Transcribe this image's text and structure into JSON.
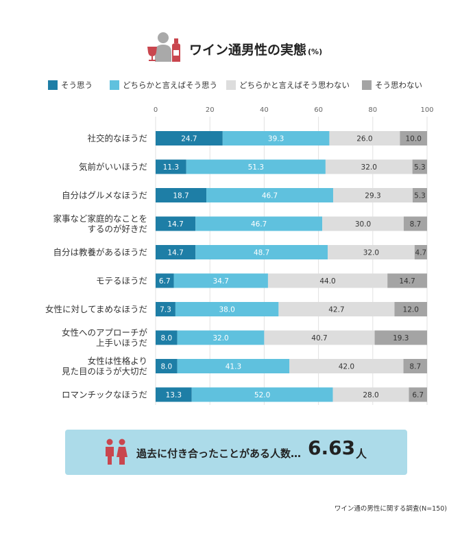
{
  "header": {
    "title": "ワイン通男性の実態",
    "unit": "(%)",
    "icon": "person-wine-icon"
  },
  "colors": {
    "agree": "#1e7ea6",
    "somewhat_agree": "#5fc1de",
    "somewhat_disagree": "#dddddd",
    "disagree": "#a4a4a4",
    "accent_red": "#c9464e",
    "callout_bg": "#acdbe9"
  },
  "chart_data": {
    "type": "bar",
    "orientation": "horizontal",
    "stacked": true,
    "xlim": [
      0,
      100
    ],
    "xticks": [
      0,
      20,
      40,
      60,
      80,
      100
    ],
    "grid": true,
    "legend_position": "top",
    "categories": [
      [
        "社交的なほうだ"
      ],
      [
        "気前がいいほうだ"
      ],
      [
        "自分はグルメなほうだ"
      ],
      [
        "家事など家庭的なことを",
        "するのが好きだ"
      ],
      [
        "自分は教養があるほうだ"
      ],
      [
        "モテるほうだ"
      ],
      [
        "女性に対してまめなほうだ"
      ],
      [
        "女性へのアプローチが",
        "上手いほうだ"
      ],
      [
        "女性は性格より",
        "見た目のほうが大切だ"
      ],
      [
        "ロマンチックなほうだ"
      ]
    ],
    "series": [
      {
        "name": "そう思う",
        "values": [
          24.7,
          11.3,
          18.7,
          14.7,
          14.7,
          6.7,
          7.3,
          8.0,
          8.0,
          13.3
        ]
      },
      {
        "name": "どちらかと言えばそう思う",
        "values": [
          39.3,
          51.3,
          46.7,
          46.7,
          48.7,
          34.7,
          38.0,
          32.0,
          41.3,
          52.0
        ]
      },
      {
        "name": "どちらかと言えばそう思わない",
        "values": [
          26.0,
          32.0,
          29.3,
          30.0,
          32.0,
          44.0,
          42.7,
          40.7,
          42.0,
          28.0
        ]
      },
      {
        "name": "そう思わない",
        "values": [
          10.0,
          5.3,
          5.3,
          8.7,
          4.7,
          14.7,
          12.0,
          19.3,
          8.7,
          6.7
        ]
      }
    ],
    "labels": [
      [
        "24.7",
        "39.3",
        "26.0",
        "10.0"
      ],
      [
        "11.3",
        "51.3",
        "32.0",
        "5.3"
      ],
      [
        "18.7",
        "46.7",
        "29.3",
        "5.3"
      ],
      [
        "14.7",
        "46.7",
        "30.0",
        "8.7"
      ],
      [
        "14.7",
        "48.7",
        "32.0",
        "4.7"
      ],
      [
        "6.7",
        "34.7",
        "44.0",
        "14.7"
      ],
      [
        "7.3",
        "38.0",
        "42.7",
        "12.0"
      ],
      [
        "8.0",
        "32.0",
        "40.7",
        "19.3"
      ],
      [
        "8.0",
        "41.3",
        "42.0",
        "8.7"
      ],
      [
        "13.3",
        "52.0",
        "28.0",
        "6.7"
      ]
    ]
  },
  "callout": {
    "text": "過去に付き合ったことがある人数…",
    "value": "6.63",
    "unit": "人",
    "icon": "couple-icon"
  },
  "source": "ワイン通の男性に関する調査(N=150)"
}
